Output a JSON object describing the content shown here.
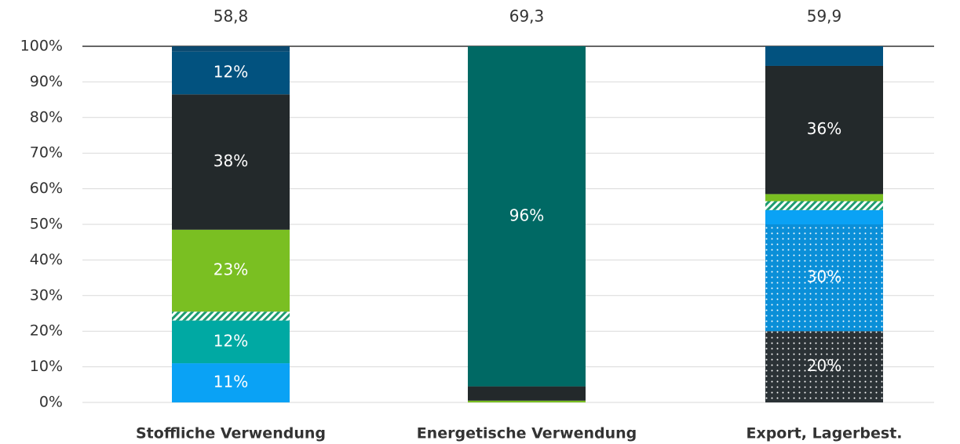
{
  "chart_data": {
    "type": "stacked_bar_100",
    "categories": [
      "Stoffliche Verwendung",
      "Energetische Verwendung",
      "Export, Lagerbest."
    ],
    "totals": [
      58.8,
      69.3,
      59.9
    ],
    "total_labels": [
      "58,8",
      "69,3",
      "59,9"
    ],
    "ylim": [
      0,
      100
    ],
    "yticks": [
      {
        "value": 0,
        "label": "0%"
      },
      {
        "value": 10,
        "label": "10%"
      },
      {
        "value": 20,
        "label": "20%"
      },
      {
        "value": 30,
        "label": "30%"
      },
      {
        "value": 40,
        "label": "40%"
      },
      {
        "value": 50,
        "label": "50%"
      },
      {
        "value": 60,
        "label": "60%"
      },
      {
        "value": 70,
        "label": "70%"
      },
      {
        "value": 80,
        "label": "80%"
      },
      {
        "value": 90,
        "label": "90%"
      },
      {
        "value": 100,
        "label": "100%"
      }
    ],
    "grid": true,
    "series": [
      {
        "color": "#2b3236",
        "pattern": "dots",
        "values": [
          0,
          0,
          20
        ],
        "value_labels": [
          null,
          null,
          "20%"
        ]
      },
      {
        "color": "#0a8fd8",
        "pattern": "dots",
        "values": [
          0,
          0,
          30
        ],
        "value_labels": [
          null,
          null,
          "30%"
        ]
      },
      {
        "color": "#0aa2f5",
        "values": [
          11,
          0,
          4
        ],
        "value_labels": [
          "11%",
          null,
          null
        ]
      },
      {
        "color": "#00a9a3",
        "values": [
          12,
          0,
          0
        ],
        "value_labels": [
          "12%",
          null,
          null
        ]
      },
      {
        "color": "#1e9c72",
        "pattern": "hatch",
        "values": [
          2.5,
          0,
          2.5
        ],
        "value_labels": [
          null,
          null,
          null
        ]
      },
      {
        "color": "#7abf22",
        "values": [
          23,
          0.5,
          2
        ],
        "value_labels": [
          "23%",
          null,
          null
        ]
      },
      {
        "color": "#23292b",
        "values": [
          38,
          4,
          36
        ],
        "value_labels": [
          "38%",
          null,
          "36%"
        ]
      },
      {
        "color": "#006964",
        "values": [
          0,
          95.5,
          0
        ],
        "value_labels": [
          null,
          "96%",
          null
        ]
      },
      {
        "color": "#02527f",
        "values": [
          12,
          0,
          5.5
        ],
        "value_labels": [
          "12%",
          null,
          null
        ]
      },
      {
        "color": "#0b4a70",
        "values": [
          1.5,
          0,
          0
        ],
        "value_labels": [
          null,
          null,
          null
        ]
      }
    ]
  }
}
